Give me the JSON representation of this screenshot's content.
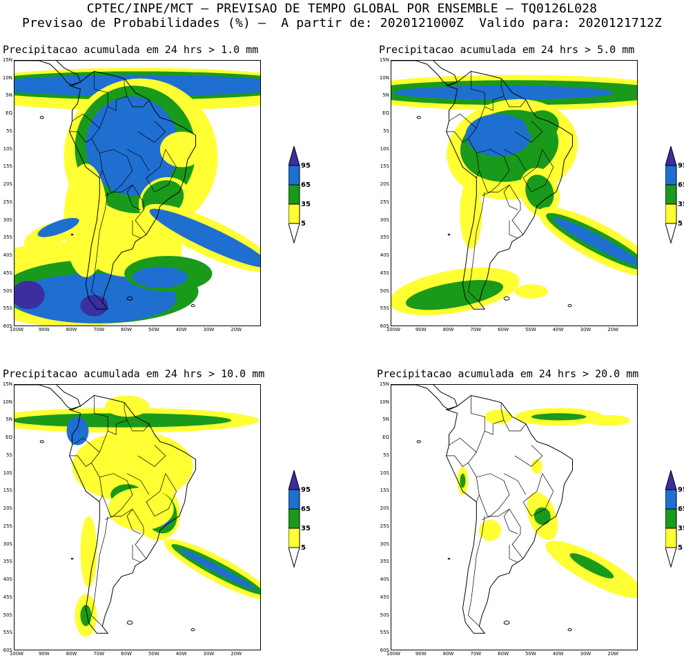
{
  "header": {
    "line1": "CPTEC/INPE/MCT – PREVISAO DE TEMPO GLOBAL POR ENSEMBLE – TQ0126L028",
    "line2": "Previsao de Probabilidades (%) –  A partir de: 2020121000Z  Valido para: 2020121712Z"
  },
  "axes": {
    "lat_ticks": [
      "15N",
      "10N",
      "5N",
      "EQ",
      "5S",
      "10S",
      "15S",
      "20S",
      "25S",
      "30S",
      "35S",
      "40S",
      "45S",
      "50S",
      "55S",
      "60S"
    ],
    "lon_ticks": [
      "100W",
      "90W",
      "80W",
      "70W",
      "60W",
      "50W",
      "40W",
      "30W",
      "20W"
    ]
  },
  "legend": {
    "levels": [
      "95",
      "65",
      "35",
      "5"
    ],
    "colors": [
      "#3a2ea0",
      "#1f6fd0",
      "#1a9a1a",
      "#ffff33"
    ]
  },
  "panels": [
    {
      "title": "Precipitacao acumulada em 24 hrs > 1.0 mm"
    },
    {
      "title": "Precipitacao acumulada em 24 hrs > 5.0 mm"
    },
    {
      "title": "Precipitacao acumulada em 24 hrs > 10.0 mm"
    },
    {
      "title": "Precipitacao acumulada em 24 hrs > 20.0 mm"
    }
  ]
}
